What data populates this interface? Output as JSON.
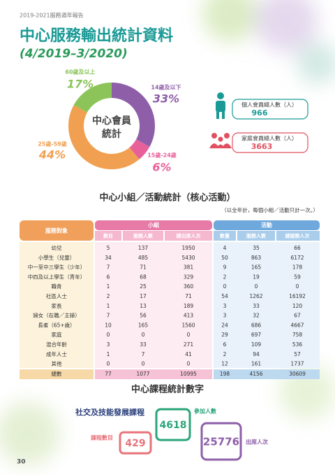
{
  "header": {
    "report": "2019-2021服務週年報告",
    "title": "中心服務輸出統計資料",
    "period": "(4/2019–3/2020)"
  },
  "chart_data": {
    "type": "pie",
    "donut": true,
    "center_label_lines": [
      "中心會員",
      "統計"
    ],
    "categories": [
      "14歲及以下",
      "15歲-24歲",
      "25歲-59歲",
      "60歲及以上"
    ],
    "values": [
      33,
      6,
      44,
      17
    ],
    "value_labels": [
      "33%",
      "6%",
      "44%",
      "17%"
    ],
    "colors": [
      "#8e5fa8",
      "#e8609a",
      "#f0a050",
      "#8cc45a"
    ]
  },
  "members": [
    {
      "label": "個人會員總人數（人）",
      "value": 966
    },
    {
      "label": "家庭會員總人數（人）",
      "value": 3663
    }
  ],
  "activity": {
    "heading": "中心小組／活動統計（核心活動）",
    "note": "（以全年計，每個小組／活動只計一次。）",
    "target_header": "服務對象",
    "groups_header": "小組",
    "activities_header": "活動",
    "group_cols": [
      "數目",
      "服務人數",
      "總出席人次"
    ],
    "activity_cols": [
      "數量",
      "服務人數",
      "總服務人次"
    ],
    "rows": [
      [
        "幼兒",
        5,
        137,
        1950,
        4,
        35,
        66
      ],
      [
        "小學生（兒童）",
        34,
        485,
        5430,
        50,
        863,
        6172
      ],
      [
        "中一至中三學生（少年）",
        7,
        71,
        381,
        9,
        165,
        178
      ],
      [
        "中四及以上學生（青年）",
        6,
        68,
        329,
        2,
        19,
        59
      ],
      [
        "職青",
        1,
        25,
        360,
        0,
        0,
        0
      ],
      [
        "社區人士",
        2,
        17,
        71,
        54,
        1262,
        16192
      ],
      [
        "家長",
        1,
        13,
        189,
        3,
        33,
        120
      ],
      [
        "婦女（在職／主婦）",
        7,
        56,
        413,
        3,
        32,
        67
      ],
      [
        "長者（65+歲）",
        10,
        165,
        1560,
        24,
        686,
        4667
      ],
      [
        "家庭",
        0,
        0,
        0,
        29,
        697,
        758
      ],
      [
        "混合年齡",
        3,
        33,
        271,
        6,
        109,
        536
      ],
      [
        "成年人士",
        1,
        7,
        41,
        2,
        94,
        57
      ],
      [
        "其他",
        0,
        0,
        0,
        12,
        161,
        1737
      ]
    ],
    "total": [
      "總數",
      77,
      1077,
      10995,
      198,
      4156,
      30609
    ]
  },
  "courses": {
    "heading": "中心課程統計數字",
    "program": "社交及技能發展課程",
    "stats": [
      {
        "label": "課程數目",
        "value": 429
      },
      {
        "label": "參加人數",
        "value": 4618
      },
      {
        "label": "出席人次",
        "value": 25776
      }
    ]
  },
  "page_number": "30"
}
